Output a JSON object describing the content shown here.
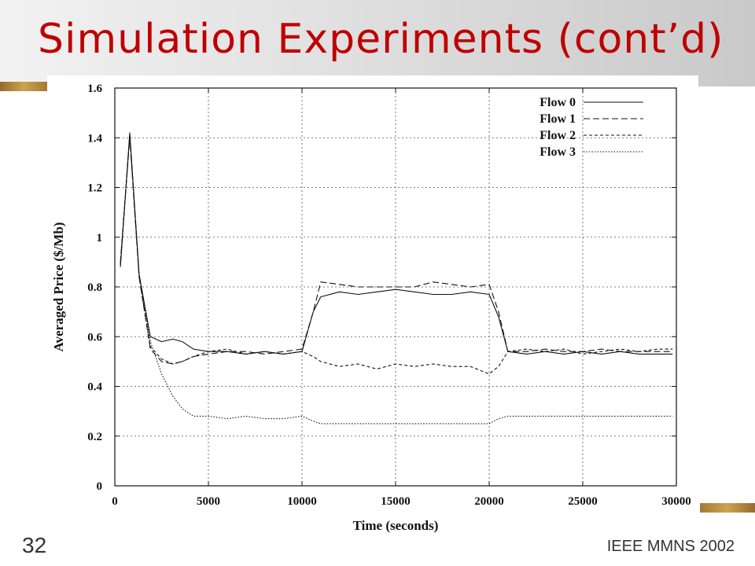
{
  "slide": {
    "title": "Simulation Experiments (cont’d)",
    "number": "32",
    "footer": "IEEE MMNS 2002"
  },
  "colors": {
    "title": "#c00000",
    "accent": "#c69a3a"
  },
  "chart_data": {
    "type": "line",
    "title": "",
    "xlabel": "Time (seconds)",
    "ylabel": "Averaged Price ($/Mb)",
    "xlim": [
      0,
      30000
    ],
    "ylim": [
      0,
      1.6
    ],
    "xticks": [
      0,
      5000,
      10000,
      15000,
      20000,
      25000,
      30000
    ],
    "yticks": [
      0,
      0.2,
      0.4,
      0.6,
      0.8,
      1,
      1.2,
      1.4,
      1.6
    ],
    "xtick_labels": [
      "0",
      "5000",
      "10000",
      "15000",
      "20000",
      "25000",
      "30000"
    ],
    "ytick_labels": [
      "0",
      "0.2",
      "0.4",
      "0.6",
      "0.8",
      "1",
      "1.2",
      "1.4",
      "1.6"
    ],
    "grid": true,
    "legend_position": "top-right",
    "series": [
      {
        "name": "Flow 0",
        "dash": "solid",
        "x": [
          300,
          800,
          1300,
          1900,
          2500,
          3100,
          3600,
          4200,
          5000,
          6000,
          7000,
          8000,
          9000,
          10000,
          10600,
          11000,
          12000,
          13000,
          14000,
          15000,
          16000,
          17000,
          18000,
          19000,
          20000,
          20500,
          21000,
          22000,
          23000,
          24000,
          25000,
          26000,
          27000,
          28000,
          29000,
          29800
        ],
        "y": [
          0.88,
          1.42,
          0.85,
          0.6,
          0.58,
          0.59,
          0.58,
          0.55,
          0.54,
          0.54,
          0.53,
          0.54,
          0.53,
          0.54,
          0.7,
          0.76,
          0.78,
          0.77,
          0.78,
          0.79,
          0.78,
          0.77,
          0.77,
          0.78,
          0.77,
          0.68,
          0.54,
          0.53,
          0.54,
          0.53,
          0.54,
          0.53,
          0.54,
          0.53,
          0.53,
          0.53
        ]
      },
      {
        "name": "Flow 1",
        "dash": "8,4",
        "x": [
          300,
          800,
          1300,
          1900,
          2500,
          3100,
          3600,
          4200,
          5000,
          6000,
          7000,
          8000,
          9000,
          10000,
          10600,
          11000,
          12000,
          13000,
          14000,
          15000,
          16000,
          17000,
          18000,
          19000,
          20000,
          20500,
          21000,
          22000,
          23000,
          24000,
          25000,
          26000,
          27000,
          28000,
          29000,
          29800
        ],
        "y": [
          0.9,
          1.4,
          0.84,
          0.55,
          0.5,
          0.49,
          0.5,
          0.52,
          0.53,
          0.54,
          0.54,
          0.53,
          0.54,
          0.55,
          0.7,
          0.82,
          0.81,
          0.8,
          0.8,
          0.8,
          0.8,
          0.82,
          0.81,
          0.8,
          0.81,
          0.7,
          0.54,
          0.54,
          0.55,
          0.54,
          0.54,
          0.55,
          0.54,
          0.54,
          0.54,
          0.54
        ]
      },
      {
        "name": "Flow 2",
        "dash": "4,3",
        "x": [
          300,
          800,
          1300,
          1900,
          2500,
          3100,
          3600,
          4200,
          5000,
          6000,
          7000,
          8000,
          9000,
          10000,
          10600,
          11000,
          12000,
          13000,
          14000,
          15000,
          16000,
          17000,
          18000,
          19000,
          20000,
          20500,
          21000,
          22000,
          23000,
          24000,
          25000,
          26000,
          27000,
          28000,
          29000,
          29800
        ],
        "y": [
          0.89,
          1.41,
          0.84,
          0.56,
          0.51,
          0.49,
          0.5,
          0.52,
          0.54,
          0.55,
          0.53,
          0.54,
          0.53,
          0.54,
          0.52,
          0.5,
          0.48,
          0.49,
          0.47,
          0.49,
          0.48,
          0.49,
          0.48,
          0.48,
          0.45,
          0.48,
          0.54,
          0.55,
          0.54,
          0.55,
          0.53,
          0.54,
          0.55,
          0.54,
          0.55,
          0.55
        ]
      },
      {
        "name": "Flow 3",
        "dash": "1.5,2",
        "x": [
          300,
          800,
          1300,
          1900,
          2500,
          3100,
          3600,
          4200,
          5000,
          6000,
          7000,
          8000,
          9000,
          10000,
          10600,
          11000,
          12000,
          13000,
          14000,
          15000,
          16000,
          17000,
          18000,
          19000,
          20000,
          20500,
          21000,
          22000,
          23000,
          24000,
          25000,
          26000,
          27000,
          28000,
          29000,
          29800
        ],
        "y": [
          0.9,
          1.41,
          0.85,
          0.58,
          0.45,
          0.36,
          0.31,
          0.28,
          0.28,
          0.27,
          0.28,
          0.27,
          0.27,
          0.28,
          0.26,
          0.25,
          0.25,
          0.25,
          0.25,
          0.25,
          0.25,
          0.25,
          0.25,
          0.25,
          0.25,
          0.27,
          0.28,
          0.28,
          0.28,
          0.28,
          0.28,
          0.28,
          0.28,
          0.28,
          0.28,
          0.28
        ]
      }
    ]
  }
}
